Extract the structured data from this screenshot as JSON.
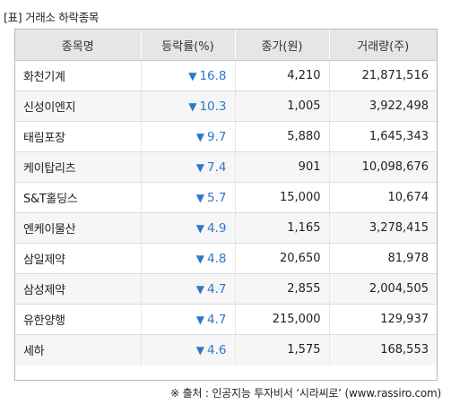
{
  "caption": "[표] 거래소 하락종목",
  "headers": [
    "종목명",
    "등락률(%)",
    "종가(원)",
    "거래량(주)"
  ],
  "rows": [
    {
      "name": "화천기계",
      "arrow": "▼",
      "change": "16.8",
      "close": "4,210",
      "volume": "21,871,516"
    },
    {
      "name": "신성이엔지",
      "arrow": "▼",
      "change": "10.3",
      "close": "1,005",
      "volume": "3,922,498"
    },
    {
      "name": "태림포장",
      "arrow": "▼",
      "change": "9.7",
      "close": "5,880",
      "volume": "1,645,343"
    },
    {
      "name": "케이탑리츠",
      "arrow": "▼",
      "change": "7.4",
      "close": "901",
      "volume": "10,098,676"
    },
    {
      "name": "S&T홀딩스",
      "arrow": "▼",
      "change": "5.7",
      "close": "15,000",
      "volume": "10,674"
    },
    {
      "name": "엔케이물산",
      "arrow": "▼",
      "change": "4.9",
      "close": "1,165",
      "volume": "3,278,415"
    },
    {
      "name": "삼일제약",
      "arrow": "▼",
      "change": "4.8",
      "close": "20,650",
      "volume": "81,978"
    },
    {
      "name": "삼성제약",
      "arrow": "▼",
      "change": "4.7",
      "close": "2,855",
      "volume": "2,004,505"
    },
    {
      "name": "유한양행",
      "arrow": "▼",
      "change": "4.7",
      "close": "215,000",
      "volume": "129,937"
    },
    {
      "name": "세하",
      "arrow": "▼",
      "change": "4.6",
      "close": "1,575",
      "volume": "168,553"
    }
  ],
  "source": "※ 출처 : 인공지능 투자비서 ‘시라씨로’ (www.rassiro.com)",
  "colors": {
    "down": "#2d78c8",
    "header_bg": "#e6e6e6",
    "border": "#b8b8b8"
  }
}
